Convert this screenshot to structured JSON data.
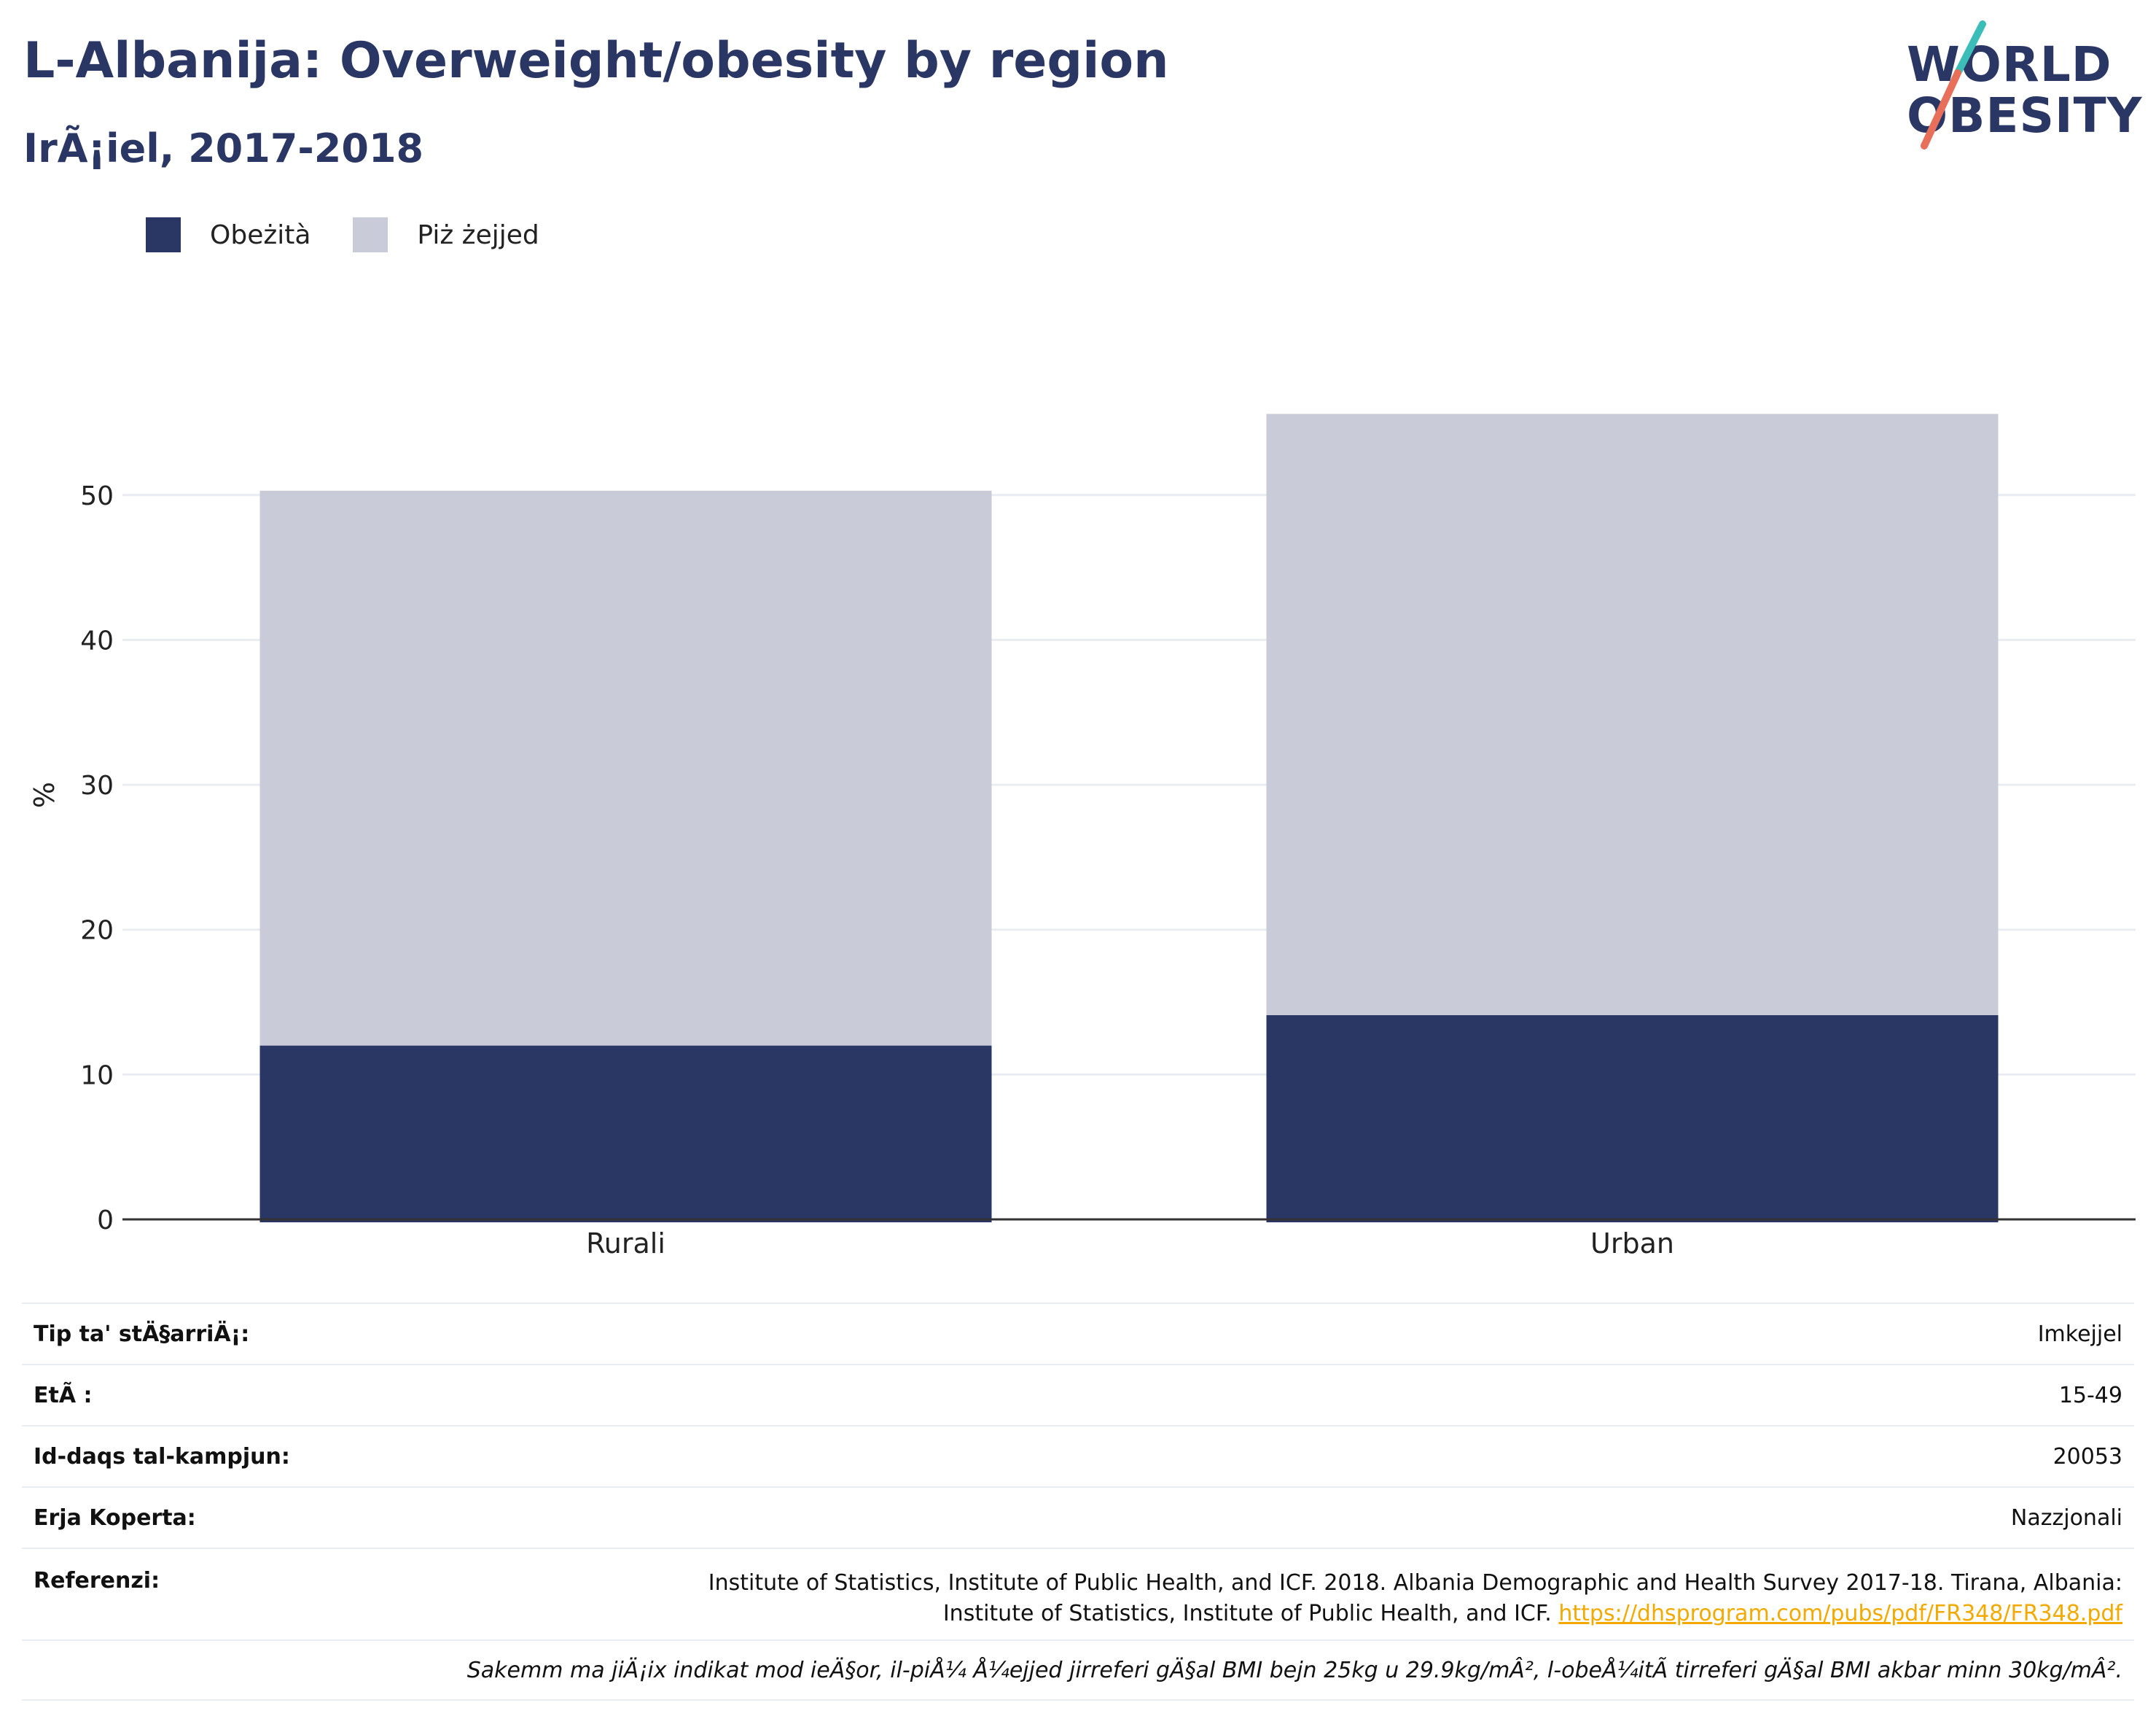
{
  "header": {
    "title": "L-Albanija: Overweight/obesity by region",
    "subtitle": "IrÃ¡iel, 2017-2018"
  },
  "logo": {
    "line1": "WORLD",
    "line2": "OBESITY",
    "colors": {
      "slash_top": "#3cbdb8",
      "slash_bottom": "#e8705b"
    }
  },
  "colors": {
    "obesity": "#2a3663",
    "overweight": "#c9ccd8",
    "axis": "#333333",
    "grid": "#e9edf2"
  },
  "legend": [
    {
      "label": "Obeżità",
      "color": "#2a3663"
    },
    {
      "label": "Piż żejjed",
      "color": "#c9ccd8"
    }
  ],
  "chart_data": {
    "type": "bar",
    "stacked": true,
    "categories": [
      "Rurali",
      "Urban"
    ],
    "series": [
      {
        "name": "Obeżità",
        "values": [
          12.0,
          14.1
        ]
      },
      {
        "name": "Piż żejjed",
        "values": [
          38.3,
          41.5
        ]
      }
    ],
    "ylabel": "%",
    "xlabel": "",
    "ylim": [
      0,
      59
    ],
    "yticks": [
      0,
      10,
      20,
      30,
      40,
      50
    ],
    "grid": true,
    "legend_position": "top-left"
  },
  "info_table": {
    "rows": [
      {
        "key": "Tip ta' stÄ§arriÄ¡:",
        "value": "Imkejjel"
      },
      {
        "key": "EtÃ :",
        "value": "15-49"
      },
      {
        "key": "Id-daqs tal-kampjun:",
        "value": "20053"
      },
      {
        "key": "Erja Koperta:",
        "value": "Nazzjonali"
      }
    ],
    "reference": {
      "key": "Referenzi:",
      "line1": "Institute of Statistics, Institute of Public Health, and ICF. 2018. Albania Demographic and Health Survey 2017-18. Tirana, Albania:",
      "line2": "Institute of Statistics, Institute of Public Health, and ICF.",
      "link": "https://dhsprogram.com/pubs/pdf/FR348/FR348.pdf"
    },
    "note": "Sakemm ma jiÄ¡ix indikat mod ieÄ§or, il-piÅ¼ Å¼ejjed jirreferi gÄ§al BMI bejn 25kg u 29.9kg/mÂ², l-obeÅ¼itÃ  tirreferi gÄ§al BMI akbar minn 30kg/mÂ²."
  }
}
